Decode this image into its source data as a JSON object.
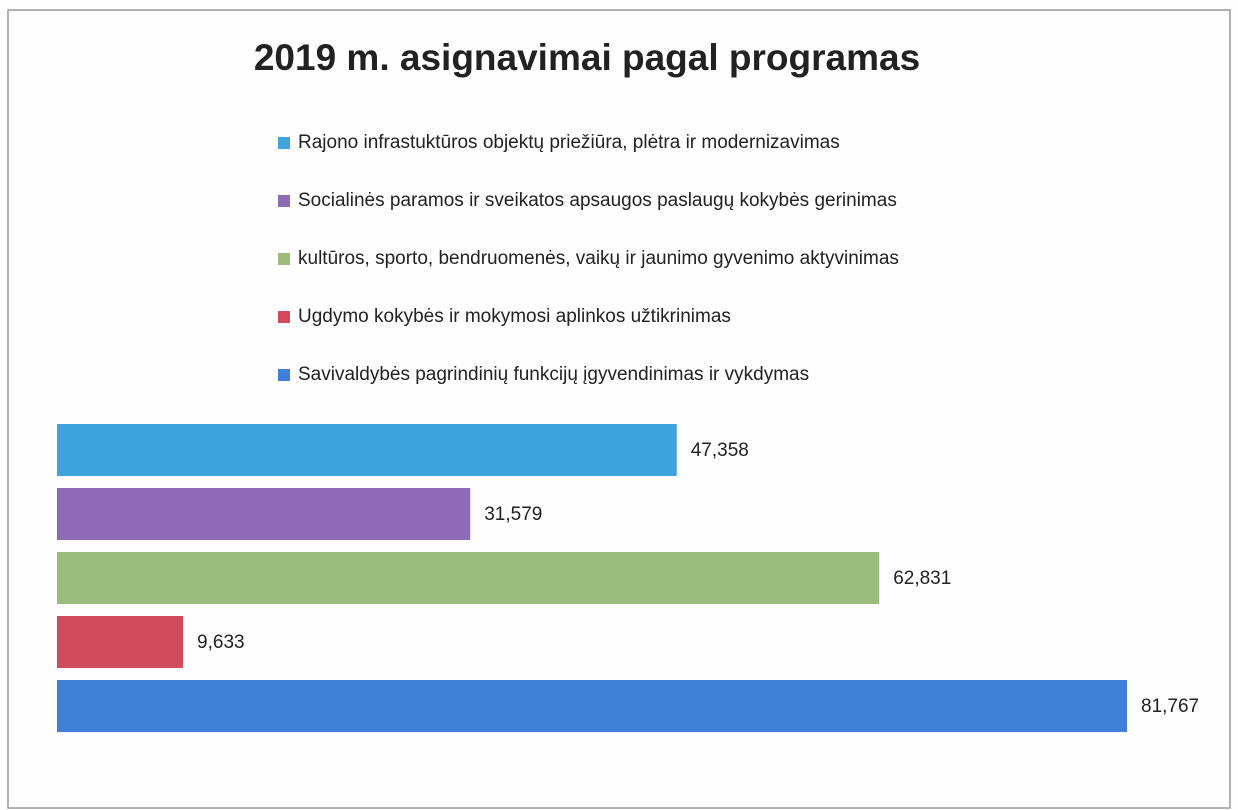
{
  "chart_data": {
    "type": "hbar",
    "title": "2019 m. asignavimai pagal programas",
    "series": [
      {
        "name": "Rajono infrastuktūros objektų priežiūra, plėtra ir modernizavimas",
        "color": "#3fa4de",
        "values": [
          47.358
        ],
        "value_labels": [
          "47,358"
        ]
      },
      {
        "name": "Socialinės paramos ir sveikatos apsaugos paslaugų kokybės gerinimas",
        "color": "#8e6bb6",
        "values": [
          31.579
        ],
        "value_labels": [
          "31,579"
        ]
      },
      {
        "name": "kultūros, sporto, bendruomenės, vaikų ir jaunimo gyvenimo aktyvinimas",
        "color": "#9cbc7e",
        "values": [
          62.831
        ],
        "value_labels": [
          "62,831"
        ]
      },
      {
        "name": "Ugdymo kokybės ir mokymosi aplinkos užtikrinimas",
        "color": "#d24a5e",
        "values": [
          9.633
        ],
        "value_labels": [
          "9,633"
        ]
      },
      {
        "name": "Savivaldybės pagrindinių funkcijų įgyvendinimas ir vykdymas",
        "color": "#3f7fd6",
        "values": [
          81.767
        ],
        "value_labels": [
          "81,767"
        ]
      }
    ]
  }
}
